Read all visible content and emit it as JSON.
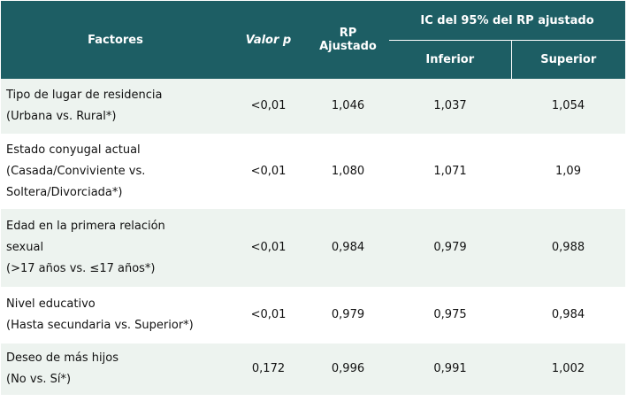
{
  "header": {
    "factores": "Factores",
    "valor_p": "Valor p",
    "rp_line1": "RP",
    "rp_line2": "Ajustado",
    "ic": "IC del 95% del RP ajustado",
    "inferior": "Inferior",
    "superior": "Superior"
  },
  "colors": {
    "header_bg": "#1d5e64",
    "shaded_row": "#edf3ef"
  },
  "rows": [
    {
      "lines": [
        "Tipo de lugar de residencia",
        "(Urbana vs. Rural*)"
      ],
      "valor_p": "<0,01",
      "rp": "1,046",
      "inferior": "1,037",
      "superior": "1,054"
    },
    {
      "lines": [
        "Estado conyugal actual",
        "(Casada/Conviviente vs.",
        "Soltera/Divorciada*)"
      ],
      "valor_p": "<0,01",
      "rp": "1,080",
      "inferior": "1,071",
      "superior": "1,09"
    },
    {
      "lines": [
        "Edad en la primera relación",
        "sexual",
        "(>17 años vs. ≤17 años*)"
      ],
      "valor_p": "<0,01",
      "rp": "0,984",
      "inferior": "0,979",
      "superior": "0,988"
    },
    {
      "lines": [
        "Nivel educativo",
        "(Hasta secundaria vs. Superior*)"
      ],
      "valor_p": "<0,01",
      "rp": "0,979",
      "inferior": "0,975",
      "superior": "0,984"
    },
    {
      "lines": [
        "Deseo de más hijos",
        "(No vs. Sí*)"
      ],
      "valor_p": "0,172",
      "rp": "0,996",
      "inferior": "0,991",
      "superior": "1,002"
    }
  ]
}
